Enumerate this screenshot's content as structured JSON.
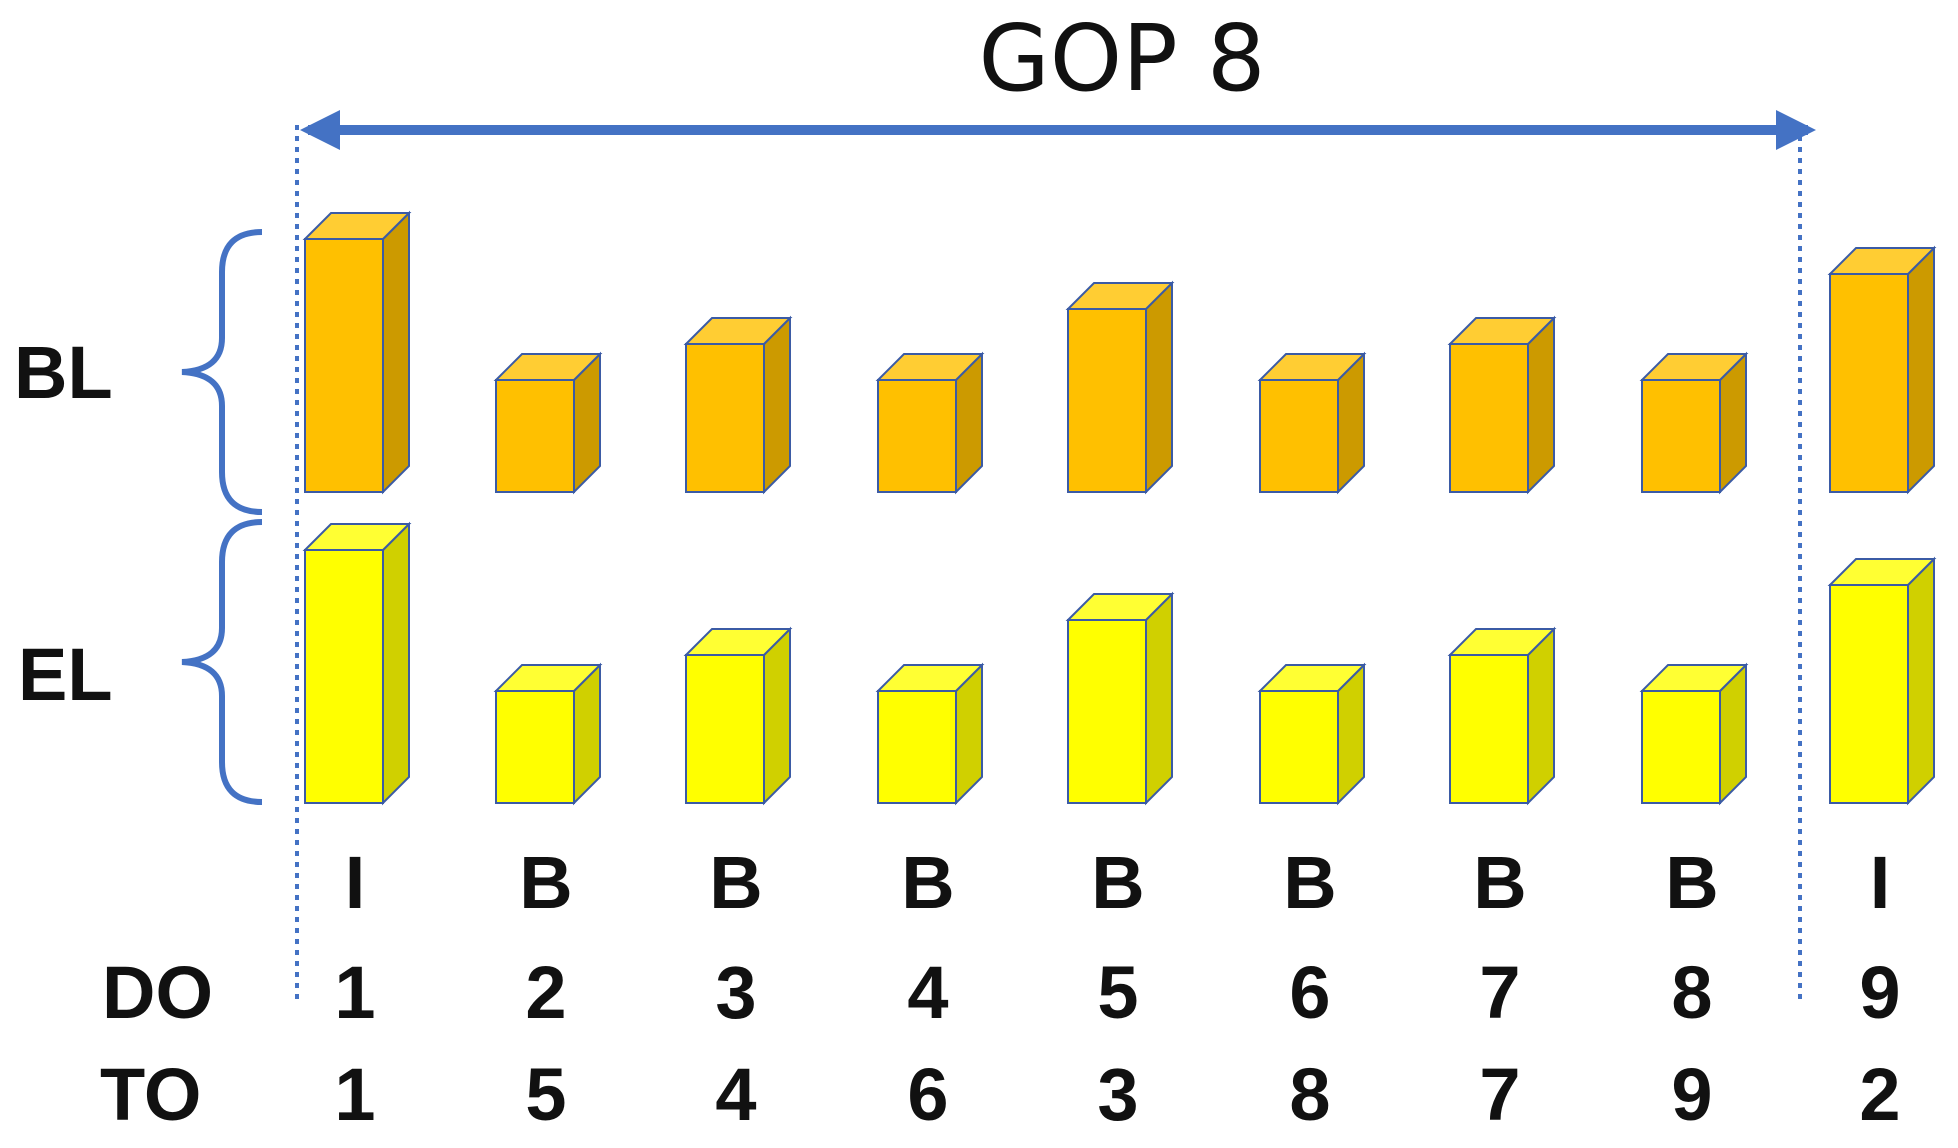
{
  "title": "GOP 8",
  "layers": [
    {
      "key": "BL",
      "label": "BL",
      "front": "#FFC000",
      "top": "#FFCD33",
      "side": "#CC9A00",
      "stroke": "#3B5BA5"
    },
    {
      "key": "EL",
      "label": "EL",
      "front": "#FFFF00",
      "top": "#FFFF33",
      "side": "#D0D000",
      "stroke": "#3B5BA5"
    }
  ],
  "order_rows": [
    {
      "key": "DO",
      "label": "DO"
    },
    {
      "key": "TO",
      "label": "TO"
    }
  ],
  "frames": [
    {
      "type": "I",
      "DO": "1",
      "TO": "1",
      "size_level": 4
    },
    {
      "type": "B",
      "DO": "2",
      "TO": "5",
      "size_level": 1
    },
    {
      "type": "B",
      "DO": "3",
      "TO": "4",
      "size_level": 2
    },
    {
      "type": "B",
      "DO": "4",
      "TO": "6",
      "size_level": 1
    },
    {
      "type": "B",
      "DO": "5",
      "TO": "3",
      "size_level": 3
    },
    {
      "type": "B",
      "DO": "6",
      "TO": "8",
      "size_level": 1
    },
    {
      "type": "B",
      "DO": "7",
      "TO": "7",
      "size_level": 2
    },
    {
      "type": "B",
      "DO": "8",
      "TO": "9",
      "size_level": 1
    },
    {
      "type": "I",
      "DO": "9",
      "TO": "2",
      "size_level": 3.5
    }
  ],
  "colors": {
    "arrow": "#4472C4",
    "brace": "#4472C4",
    "dotted": "#4472C4"
  }
}
